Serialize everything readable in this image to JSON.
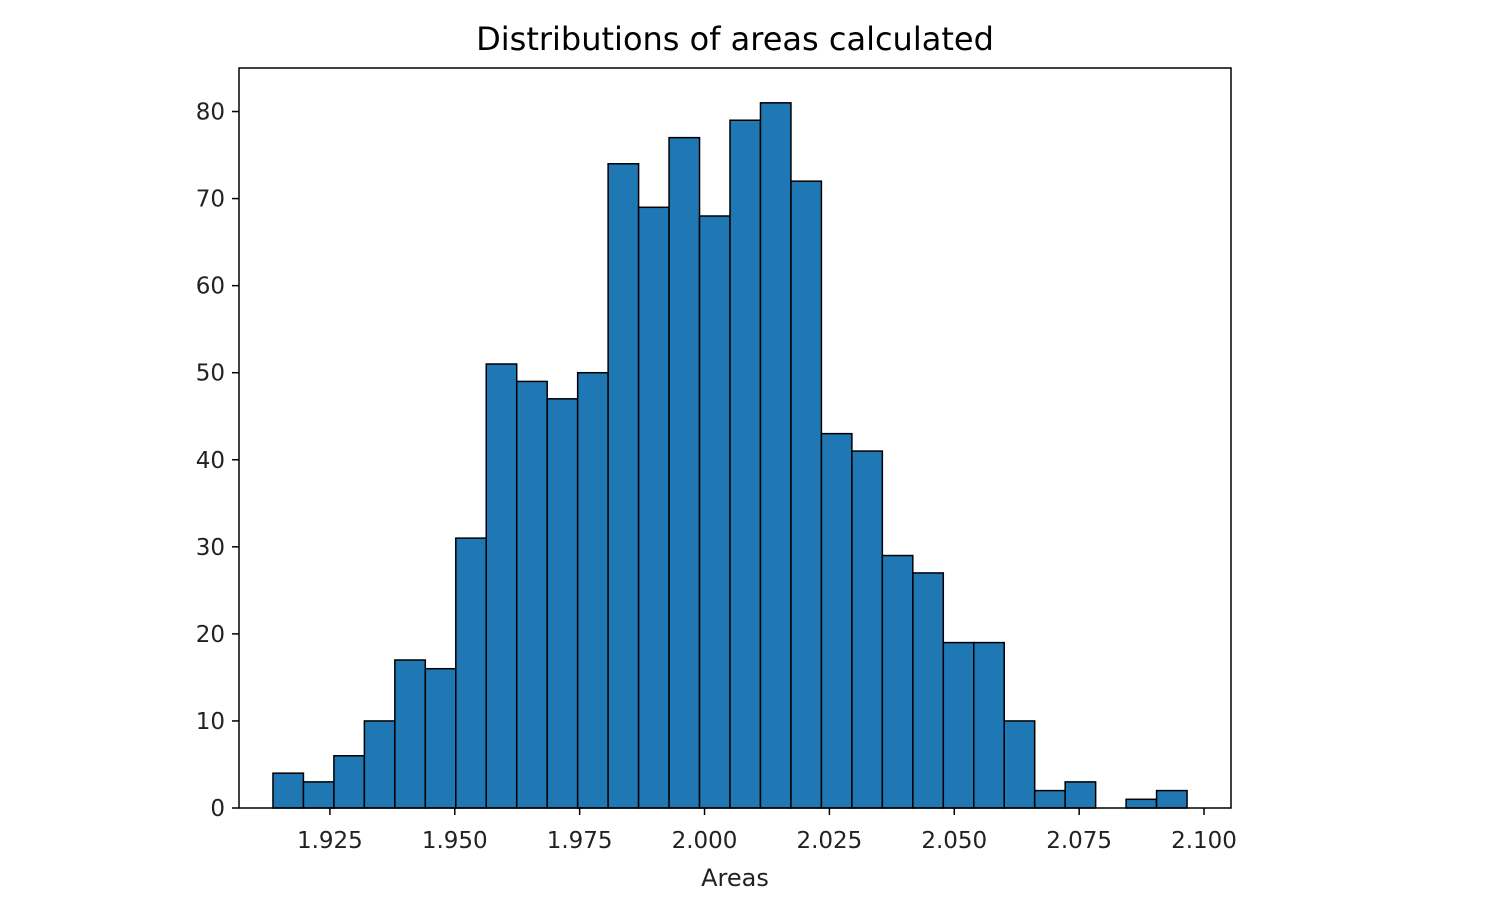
{
  "chart_data": {
    "type": "bar",
    "subtype": "histogram",
    "title": "Distributions of areas calculated",
    "xlabel": "Areas",
    "ylabel": "",
    "xlim": [
      1.9068,
      2.1054
    ],
    "ylim": [
      0,
      85
    ],
    "grid": false,
    "bar_color": "#1f77b4",
    "edge_color": "#000000",
    "x_ticks": [
      1.925,
      1.95,
      1.975,
      2.0,
      2.025,
      2.05,
      2.075,
      2.1
    ],
    "x_tick_labels": [
      "1.925",
      "1.950",
      "1.975",
      "2.000",
      "2.025",
      "2.050",
      "2.075",
      "2.100"
    ],
    "y_ticks": [
      0,
      10,
      20,
      30,
      40,
      50,
      60,
      70,
      80
    ],
    "y_tick_labels": [
      "0",
      "10",
      "20",
      "30",
      "40",
      "50",
      "60",
      "70",
      "80"
    ],
    "bin_start": 1.9136,
    "bin_width": 0.0061,
    "counts": [
      4,
      3,
      6,
      10,
      17,
      16,
      31,
      51,
      49,
      47,
      50,
      74,
      69,
      77,
      68,
      79,
      81,
      72,
      43,
      41,
      29,
      27,
      19,
      19,
      10,
      2,
      3,
      0,
      1,
      2
    ]
  }
}
